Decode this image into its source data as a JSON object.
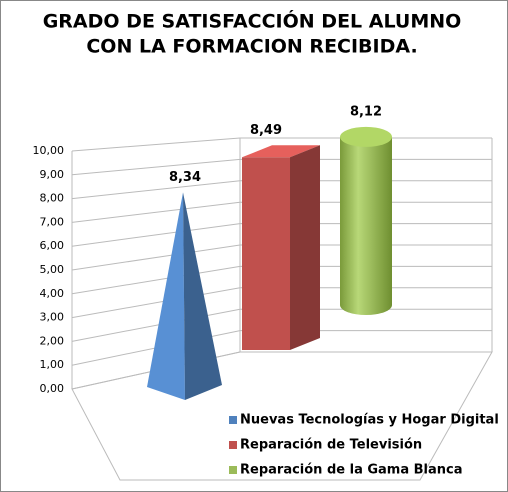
{
  "chart_data": {
    "type": "bar3d",
    "title": [
      "GRADO DE SATISFACCIÓN  DEL ALUMNO",
      "CON LA FORMACION RECIBIDA."
    ],
    "categories": [
      null
    ],
    "series": [
      {
        "name": "Nuevas Tecnologías y Hogar Digital",
        "color": "#4f81bd",
        "shape": "pyramid",
        "values": [
          8.34
        ],
        "value_labels": [
          "8,34"
        ]
      },
      {
        "name": "Reparación de Televisión",
        "color": "#c0504d",
        "shape": "box",
        "values": [
          8.49
        ],
        "value_labels": [
          "8,49"
        ]
      },
      {
        "name": "Reparación de la Gama Blanca",
        "color": "#9bbb59",
        "shape": "cylinder",
        "values": [
          8.12
        ],
        "value_labels": [
          "8,12"
        ]
      }
    ],
    "ylim": [
      0,
      10
    ],
    "yticks": [
      {
        "value": 0,
        "label": "0,00"
      },
      {
        "value": 1,
        "label": "1,00"
      },
      {
        "value": 2,
        "label": "2,00"
      },
      {
        "value": 3,
        "label": "3,00"
      },
      {
        "value": 4,
        "label": "4,00"
      },
      {
        "value": 5,
        "label": "5,00"
      },
      {
        "value": 6,
        "label": "6,00"
      },
      {
        "value": 7,
        "label": "7,00"
      },
      {
        "value": 8,
        "label": "8,00"
      },
      {
        "value": 9,
        "label": "9,00"
      },
      {
        "value": 10,
        "label": "10,00"
      }
    ],
    "grid": true
  }
}
